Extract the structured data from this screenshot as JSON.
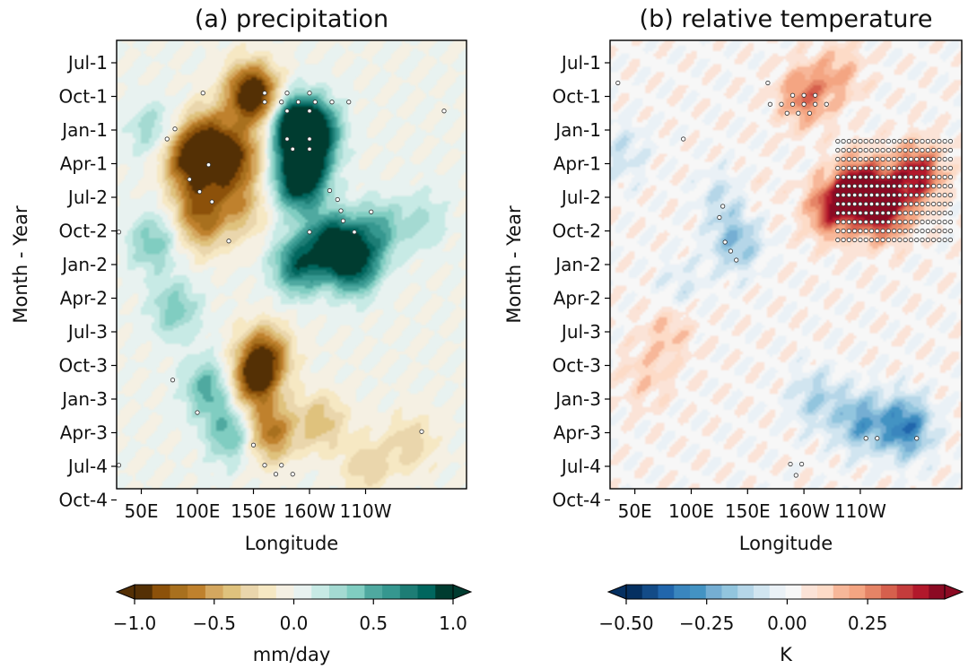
{
  "chart_data": [
    {
      "type": "heatmap",
      "title": "(a) precipitation",
      "xlabel": "Longitude",
      "ylabel": "Month - Year",
      "x_ticks": [
        "50E",
        "100E",
        "150E",
        "160W",
        "110W"
      ],
      "y_ticks": [
        "Jul-1",
        "Oct-1",
        "Jan-1",
        "Apr-1",
        "Jul-2",
        "Oct-2",
        "Jan-2",
        "Apr-2",
        "Jul-3",
        "Oct-3",
        "Jan-3",
        "Apr-3",
        "Jul-4",
        "Oct-4"
      ],
      "colorbar": {
        "label": "mm/day",
        "ticks": [
          "−1.0",
          "−0.5",
          "0.0",
          "0.5",
          "1.0"
        ],
        "range": [
          -1.0,
          1.0
        ],
        "extend": "both",
        "colors": [
          "#543005",
          "#8c510a",
          "#a8701e",
          "#bf812d",
          "#d4a75f",
          "#dfc27d",
          "#ead6ac",
          "#f6e8c3",
          "#f5f0e3",
          "#e8f2f0",
          "#c7eae5",
          "#a4dad2",
          "#80cdc1",
          "#4fa9a0",
          "#35978f",
          "#1d7d75",
          "#01665e",
          "#003c30"
        ]
      },
      "field": [
        {
          "lon": 145,
          "t": 4.5,
          "v": -0.7
        },
        {
          "lon": 155,
          "t": 5.2,
          "v": -0.6
        },
        {
          "lon": 110,
          "t": 8.5,
          "v": -0.7
        },
        {
          "lon": 90,
          "t": 10.5,
          "v": -0.8
        },
        {
          "lon": 125,
          "t": 11.5,
          "v": -0.6
        },
        {
          "lon": 140,
          "t": 10,
          "v": -0.5
        },
        {
          "lon": 100,
          "t": 14,
          "v": -0.5
        },
        {
          "lon": 140,
          "t": 15,
          "v": -0.4
        },
        {
          "lon": 105,
          "t": 16.5,
          "v": -0.5
        },
        {
          "lon": 160,
          "t": 28,
          "v": -0.8
        },
        {
          "lon": 150,
          "t": 30.5,
          "v": -0.8
        },
        {
          "lon": 165,
          "t": 35,
          "v": -0.7
        },
        {
          "lon": 210,
          "t": 34,
          "v": -0.4
        },
        {
          "lon": 250,
          "t": 38,
          "v": -0.3
        },
        {
          "lon": 290,
          "t": 36,
          "v": -0.3
        },
        {
          "lon": 185,
          "t": 7.5,
          "v": 1.0
        },
        {
          "lon": 205,
          "t": 8,
          "v": 0.95
        },
        {
          "lon": 195,
          "t": 11,
          "v": 0.9
        },
        {
          "lon": 190,
          "t": 13,
          "v": 0.7
        },
        {
          "lon": 220,
          "t": 18,
          "v": 0.95
        },
        {
          "lon": 240,
          "t": 20,
          "v": 0.9
        },
        {
          "lon": 190,
          "t": 20,
          "v": 0.8
        },
        {
          "lon": 260,
          "t": 17,
          "v": 0.5
        },
        {
          "lon": 300,
          "t": 16,
          "v": 0.25
        },
        {
          "lon": 60,
          "t": 18,
          "v": 0.4
        },
        {
          "lon": 80,
          "t": 24,
          "v": 0.4
        },
        {
          "lon": 110,
          "t": 31,
          "v": 0.5
        },
        {
          "lon": 130,
          "t": 35,
          "v": 0.5
        },
        {
          "lon": 60,
          "t": 8,
          "v": 0.3
        }
      ],
      "significance_marks": [
        {
          "lon": 105,
          "t": 4.7
        },
        {
          "lon": 160,
          "t": 4.7
        },
        {
          "lon": 180,
          "t": 4.7
        },
        {
          "lon": 200,
          "t": 4.7
        },
        {
          "lon": 160,
          "t": 5.5
        },
        {
          "lon": 175,
          "t": 5.5
        },
        {
          "lon": 190,
          "t": 5.5
        },
        {
          "lon": 205,
          "t": 5.5
        },
        {
          "lon": 220,
          "t": 5.5
        },
        {
          "lon": 235,
          "t": 5.5
        },
        {
          "lon": 180,
          "t": 6.3
        },
        {
          "lon": 200,
          "t": 6.3
        },
        {
          "lon": 320,
          "t": 6.3
        },
        {
          "lon": 80,
          "t": 7.9
        },
        {
          "lon": 73,
          "t": 8.8
        },
        {
          "lon": 180,
          "t": 8.8
        },
        {
          "lon": 200,
          "t": 8.8
        },
        {
          "lon": 185,
          "t": 9.7
        },
        {
          "lon": 200,
          "t": 9.7
        },
        {
          "lon": 110,
          "t": 11.1
        },
        {
          "lon": 93,
          "t": 12.4
        },
        {
          "lon": 102,
          "t": 13.5
        },
        {
          "lon": 113,
          "t": 14.4
        },
        {
          "lon": 218,
          "t": 13.4
        },
        {
          "lon": 225,
          "t": 14.2
        },
        {
          "lon": 228,
          "t": 15.2
        },
        {
          "lon": 255,
          "t": 15.3
        },
        {
          "lon": 230,
          "t": 16.1
        },
        {
          "lon": 30,
          "t": 17.1
        },
        {
          "lon": 200,
          "t": 17.1
        },
        {
          "lon": 240,
          "t": 17.1
        },
        {
          "lon": 128,
          "t": 17.9
        },
        {
          "lon": 78,
          "t": 30.3
        },
        {
          "lon": 100,
          "t": 33.2
        },
        {
          "lon": 300,
          "t": 34.9
        },
        {
          "lon": 150,
          "t": 36.1
        },
        {
          "lon": 30,
          "t": 37.9
        },
        {
          "lon": 160,
          "t": 37.9
        },
        {
          "lon": 175,
          "t": 37.9
        },
        {
          "lon": 170,
          "t": 38.7
        },
        {
          "lon": 185,
          "t": 38.7
        }
      ]
    },
    {
      "type": "heatmap",
      "title": "(b) relative temperature",
      "xlabel": "Longitude",
      "ylabel": "Month - Year",
      "x_ticks": [
        "50E",
        "100E",
        "150E",
        "160W",
        "110W"
      ],
      "y_ticks": [
        "Jul-1",
        "Oct-1",
        "Jan-1",
        "Apr-1",
        "Jul-2",
        "Oct-2",
        "Jan-2",
        "Apr-2",
        "Jul-3",
        "Oct-3",
        "Jan-3",
        "Apr-3",
        "Jul-4",
        "Oct-4"
      ],
      "colorbar": {
        "label": "K",
        "ticks": [
          "−0.50",
          "−0.25",
          "0.00",
          "0.25"
        ],
        "range": [
          -0.5,
          0.45
        ],
        "extend": "both",
        "colors": [
          "#053061",
          "#134b87",
          "#2166ac",
          "#3a86be",
          "#4393c3",
          "#75aed3",
          "#92c5de",
          "#b5d6e8",
          "#d1e5f0",
          "#eaf1f6",
          "#f7f7f7",
          "#fbe3d7",
          "#fddbc7",
          "#f7b799",
          "#f4a582",
          "#e58466",
          "#d6604d",
          "#c43c3c",
          "#b2182b",
          "#8b0a23"
        ]
      },
      "field": [
        {
          "lon": 270,
          "t": 15,
          "v": 0.45
        },
        {
          "lon": 250,
          "t": 13,
          "v": 0.4
        },
        {
          "lon": 225,
          "t": 15,
          "v": 0.35
        },
        {
          "lon": 300,
          "t": 12,
          "v": 0.4
        },
        {
          "lon": 200,
          "t": 5,
          "v": 0.25
        },
        {
          "lon": 230,
          "t": 3,
          "v": 0.15
        },
        {
          "lon": 150,
          "t": 14,
          "v": 0.05
        },
        {
          "lon": 140,
          "t": 18,
          "v": -0.2
        },
        {
          "lon": 130,
          "t": 14,
          "v": -0.12
        },
        {
          "lon": 90,
          "t": 22,
          "v": -0.08
        },
        {
          "lon": 290,
          "t": 34.5,
          "v": -0.35
        },
        {
          "lon": 250,
          "t": 34,
          "v": -0.25
        },
        {
          "lon": 210,
          "t": 32,
          "v": -0.15
        },
        {
          "lon": 60,
          "t": 30,
          "v": 0.1
        },
        {
          "lon": 80,
          "t": 26,
          "v": 0.12
        },
        {
          "lon": 40,
          "t": 10,
          "v": -0.1
        }
      ],
      "significance_marks": [
        {
          "lon": 35,
          "t": 3.8
        },
        {
          "lon": 168,
          "t": 3.8
        },
        {
          "lon": 190,
          "t": 4.9
        },
        {
          "lon": 200,
          "t": 4.9
        },
        {
          "lon": 210,
          "t": 4.9
        },
        {
          "lon": 170,
          "t": 5.7
        },
        {
          "lon": 180,
          "t": 5.7
        },
        {
          "lon": 190,
          "t": 5.7
        },
        {
          "lon": 200,
          "t": 5.7
        },
        {
          "lon": 210,
          "t": 5.7
        },
        {
          "lon": 220,
          "t": 5.7
        },
        {
          "lon": 185,
          "t": 6.5
        },
        {
          "lon": 195,
          "t": 6.5
        },
        {
          "lon": 205,
          "t": 6.5
        },
        {
          "lon": 93,
          "t": 8.8
        },
        {
          "lon": 128,
          "t": 14.8
        },
        {
          "lon": 125,
          "t": 15.8
        },
        {
          "lon": 130,
          "t": 18
        },
        {
          "lon": 135,
          "t": 18.8
        },
        {
          "lon": 140,
          "t": 19.6
        },
        {
          "lon": 255,
          "t": 35.5
        },
        {
          "lon": 265,
          "t": 35.5
        },
        {
          "lon": 300,
          "t": 35.5
        },
        {
          "lon": 188,
          "t": 37.8
        },
        {
          "lon": 198,
          "t": 37.8
        },
        {
          "lon": 193,
          "t": 38.8
        }
      ],
      "significance_block": {
        "lon": [
          230,
          330
        ],
        "t": [
          9,
          18
        ]
      }
    }
  ]
}
